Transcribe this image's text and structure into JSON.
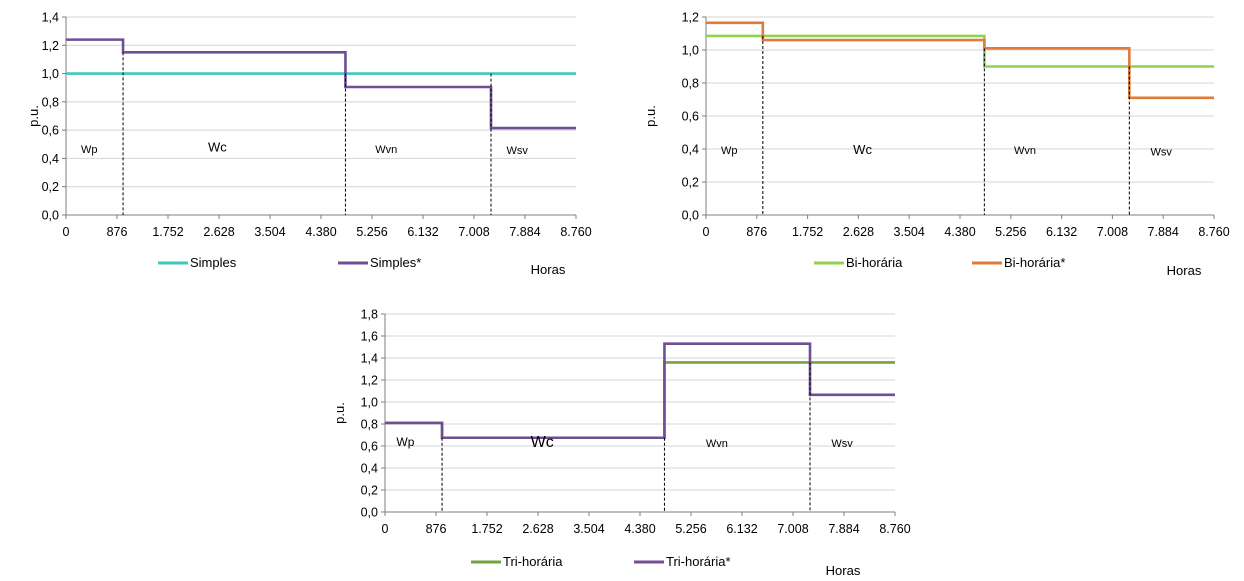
{
  "chart_data": [
    {
      "type": "line",
      "step": true,
      "ylabel": "p.u.",
      "xlabel": "Horas",
      "ylim": [
        0,
        1.4
      ],
      "ytick_step": 0.2,
      "xlim": [
        0,
        8760
      ],
      "x_ticks": [
        "0",
        "876",
        "1.752",
        "2.628",
        "3.504",
        "4.380",
        "5.256",
        "6.132",
        "7.008",
        "7.884",
        "8.760"
      ],
      "y_ticks": [
        "0,0",
        "0,2",
        "0,4",
        "0,6",
        "0,8",
        "1,0",
        "1,2",
        "1,4"
      ],
      "grid": "horizontal",
      "legend_position": "bottom",
      "boundaries": [
        980,
        4800,
        7300
      ],
      "periods": [
        {
          "label": "Wp",
          "x": 400,
          "y": 0.44
        },
        {
          "label": "Wc",
          "x": 2600,
          "y": 0.45
        },
        {
          "label": "Wvn",
          "x": 5500,
          "y": 0.44
        },
        {
          "label": "Wsv",
          "x": 7750,
          "y": 0.43
        }
      ],
      "series": [
        {
          "name": "Simples",
          "color": "#3ec9be",
          "x": [
            0,
            980,
            4800,
            7300,
            8760
          ],
          "y": [
            1.0,
            1.0,
            1.0,
            1.0,
            1.0
          ]
        },
        {
          "name": "Simples*",
          "color": "#6f4e96",
          "x": [
            0,
            980,
            4800,
            7300,
            8760
          ],
          "y": [
            1.24,
            1.15,
            0.905,
            0.615,
            0.615
          ]
        }
      ]
    },
    {
      "type": "line",
      "step": true,
      "ylabel": "p.u.",
      "xlabel": "Horas",
      "ylim": [
        0,
        1.2
      ],
      "ytick_step": 0.2,
      "xlim": [
        0,
        8760
      ],
      "x_ticks": [
        "0",
        "876",
        "1.752",
        "2.628",
        "3.504",
        "4.380",
        "5.256",
        "6.132",
        "7.008",
        "7.884",
        "8.760"
      ],
      "y_ticks": [
        "0,0",
        "0,2",
        "0,4",
        "0,6",
        "0,8",
        "1,0",
        "1,2"
      ],
      "grid": "horizontal",
      "legend_position": "bottom",
      "boundaries": [
        980,
        4800,
        7300
      ],
      "periods": [
        {
          "label": "Wp",
          "x": 400,
          "y": 0.37
        },
        {
          "label": "Wc",
          "x": 2700,
          "y": 0.37
        },
        {
          "label": "Wvn",
          "x": 5500,
          "y": 0.37
        },
        {
          "label": "Wsv",
          "x": 7850,
          "y": 0.36
        }
      ],
      "series": [
        {
          "name": "Bi-horária",
          "color": "#92d050",
          "x": [
            0,
            980,
            4800,
            7300,
            8760
          ],
          "y": [
            1.085,
            1.085,
            0.9,
            0.9,
            0.9
          ]
        },
        {
          "name": "Bi-horária*",
          "color": "#e07b39",
          "x": [
            0,
            980,
            4800,
            7300,
            8760
          ],
          "y": [
            1.165,
            1.06,
            1.01,
            0.71,
            0.71
          ]
        }
      ]
    },
    {
      "type": "line",
      "step": true,
      "ylabel": "p.u.",
      "xlabel": "Horas",
      "ylim": [
        0,
        1.8
      ],
      "ytick_step": 0.2,
      "xlim": [
        0,
        8760
      ],
      "x_ticks": [
        "0",
        "876",
        "1.752",
        "2.628",
        "3.504",
        "4.380",
        "5.256",
        "6.132",
        "7.008",
        "7.884",
        "8.760"
      ],
      "y_ticks": [
        "0,0",
        "0,2",
        "0,4",
        "0,6",
        "0,8",
        "1,0",
        "1,2",
        "1,4",
        "1,6",
        "1,8"
      ],
      "grid": "horizontal",
      "legend_position": "bottom",
      "boundaries": [
        980,
        4800,
        7300
      ],
      "periods": [
        {
          "label": "Wp",
          "x": 350,
          "y": 0.6
        },
        {
          "label": "Wc",
          "x": 2700,
          "y": 0.59
        },
        {
          "label": "Wvn",
          "x": 5700,
          "y": 0.59
        },
        {
          "label": "Wsv",
          "x": 7850,
          "y": 0.59
        }
      ],
      "series": [
        {
          "name": "Tri-horária",
          "color": "#77a042",
          "x": [
            0,
            980,
            4800,
            7300,
            8760
          ],
          "y": [
            0.81,
            0.675,
            1.36,
            1.36,
            1.36
          ]
        },
        {
          "name": "Tri-horária*",
          "color": "#6f4e96",
          "x": [
            0,
            980,
            4800,
            7300,
            8760
          ],
          "y": [
            0.81,
            0.675,
            1.53,
            1.065,
            1.065
          ]
        }
      ]
    }
  ]
}
